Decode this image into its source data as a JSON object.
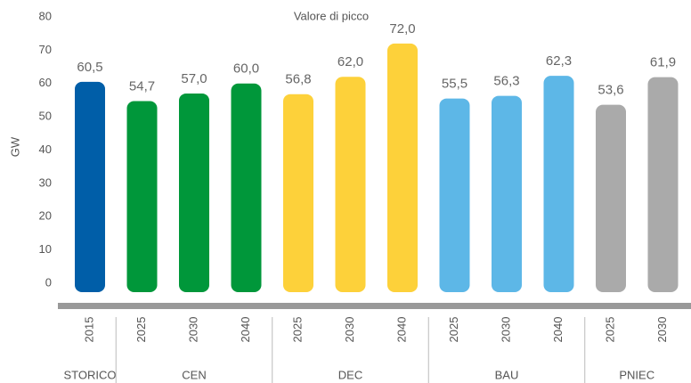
{
  "chart_data": {
    "type": "bar",
    "title": "Valore di picco",
    "y_label": "GW",
    "ylim": [
      0,
      80
    ],
    "yticks": [
      0,
      10,
      20,
      30,
      40,
      50,
      60,
      70,
      80
    ],
    "groups": [
      {
        "name": "STORICO",
        "color": "#005ea8",
        "categories": [
          "2015"
        ],
        "values": [
          60.5
        ],
        "value_labels": [
          "60,5"
        ]
      },
      {
        "name": "CEN",
        "color": "#00973a",
        "categories": [
          "2025",
          "2030",
          "2040"
        ],
        "values": [
          54.7,
          57.0,
          60.0
        ],
        "value_labels": [
          "54,7",
          "57,0",
          "60,0"
        ]
      },
      {
        "name": "DEC",
        "color": "#fdd13a",
        "categories": [
          "2025",
          "2030",
          "2040"
        ],
        "values": [
          56.8,
          62.0,
          72.0
        ],
        "value_labels": [
          "56,8",
          "62,0",
          "72,0"
        ]
      },
      {
        "name": "BAU",
        "color": "#5db7e7",
        "categories": [
          "2025",
          "2030",
          "2040"
        ],
        "values": [
          55.5,
          56.3,
          62.3
        ],
        "value_labels": [
          "55,5",
          "56,3",
          "62,3"
        ]
      },
      {
        "name": "PNIEC",
        "color": "#aaaaaa",
        "categories": [
          "2025",
          "2030"
        ],
        "values": [
          53.6,
          61.9
        ],
        "value_labels": [
          "53,6",
          "61,9"
        ]
      }
    ]
  }
}
